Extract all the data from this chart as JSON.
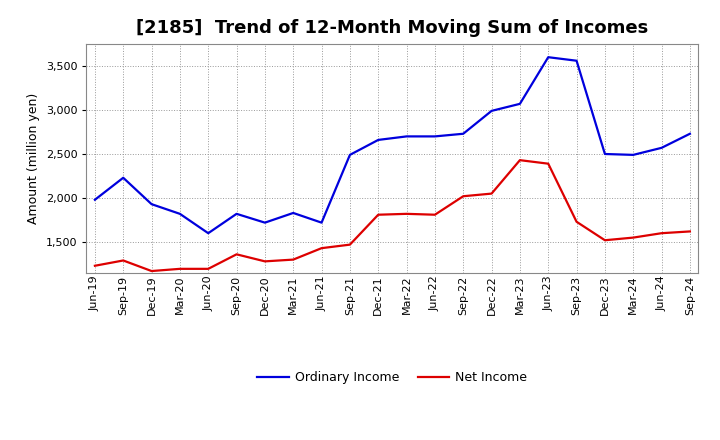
{
  "title": "[2185]  Trend of 12-Month Moving Sum of Incomes",
  "ylabel": "Amount (million yen)",
  "ylim": [
    1150,
    3750
  ],
  "yticks": [
    1500,
    2000,
    2500,
    3000,
    3500
  ],
  "background_color": "#ffffff",
  "plot_bg_color": "#ffffff",
  "grid_color": "#999999",
  "x_labels": [
    "Jun-19",
    "Sep-19",
    "Dec-19",
    "Mar-20",
    "Jun-20",
    "Sep-20",
    "Dec-20",
    "Mar-21",
    "Jun-21",
    "Sep-21",
    "Dec-21",
    "Mar-22",
    "Jun-22",
    "Sep-22",
    "Dec-22",
    "Mar-23",
    "Jun-23",
    "Sep-23",
    "Dec-23",
    "Mar-24",
    "Jun-24",
    "Sep-24"
  ],
  "ordinary_income": [
    1980,
    2230,
    1930,
    1820,
    1600,
    1820,
    1720,
    1830,
    1720,
    2490,
    2660,
    2700,
    2700,
    2730,
    2990,
    3070,
    3600,
    3560,
    2500,
    2490,
    2570,
    2730
  ],
  "net_income": [
    1230,
    1290,
    1170,
    1195,
    1195,
    1360,
    1280,
    1300,
    1430,
    1470,
    1810,
    1820,
    1810,
    2020,
    2050,
    2430,
    2390,
    1730,
    1520,
    1550,
    1600,
    1620
  ],
  "ordinary_color": "#0000dd",
  "net_color": "#dd0000",
  "line_width": 1.6,
  "title_fontsize": 13,
  "label_fontsize": 9,
  "tick_fontsize": 8,
  "legend_fontsize": 9
}
